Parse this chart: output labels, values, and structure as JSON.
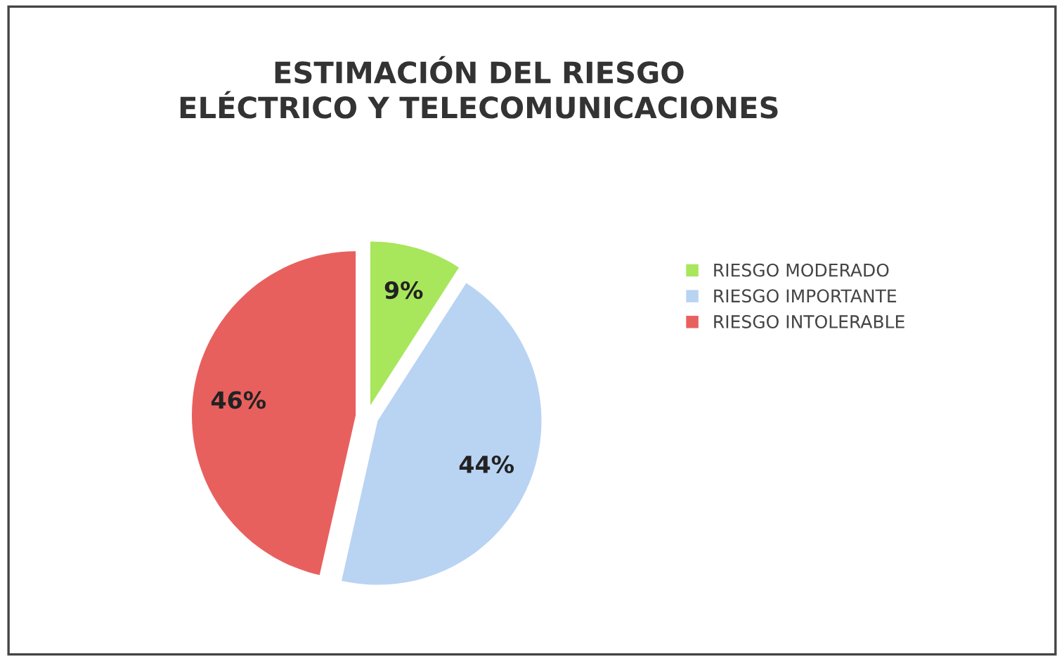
{
  "chart_data": {
    "type": "pie",
    "title": "ESTIMACIÓN DEL RIESGO\nELÉCTRICO Y TELECOMUNICACIONES",
    "categories": [
      "RIESGO MODERADO",
      "RIESGO IMPORTANTE",
      "RIESGO INTOLERABLE"
    ],
    "values": [
      9,
      44,
      46
    ],
    "colors": [
      "#a8e65c",
      "#b9d3f3",
      "#e8605e"
    ],
    "value_labels": [
      "9%",
      "44%",
      "46%"
    ],
    "legend": "right"
  }
}
